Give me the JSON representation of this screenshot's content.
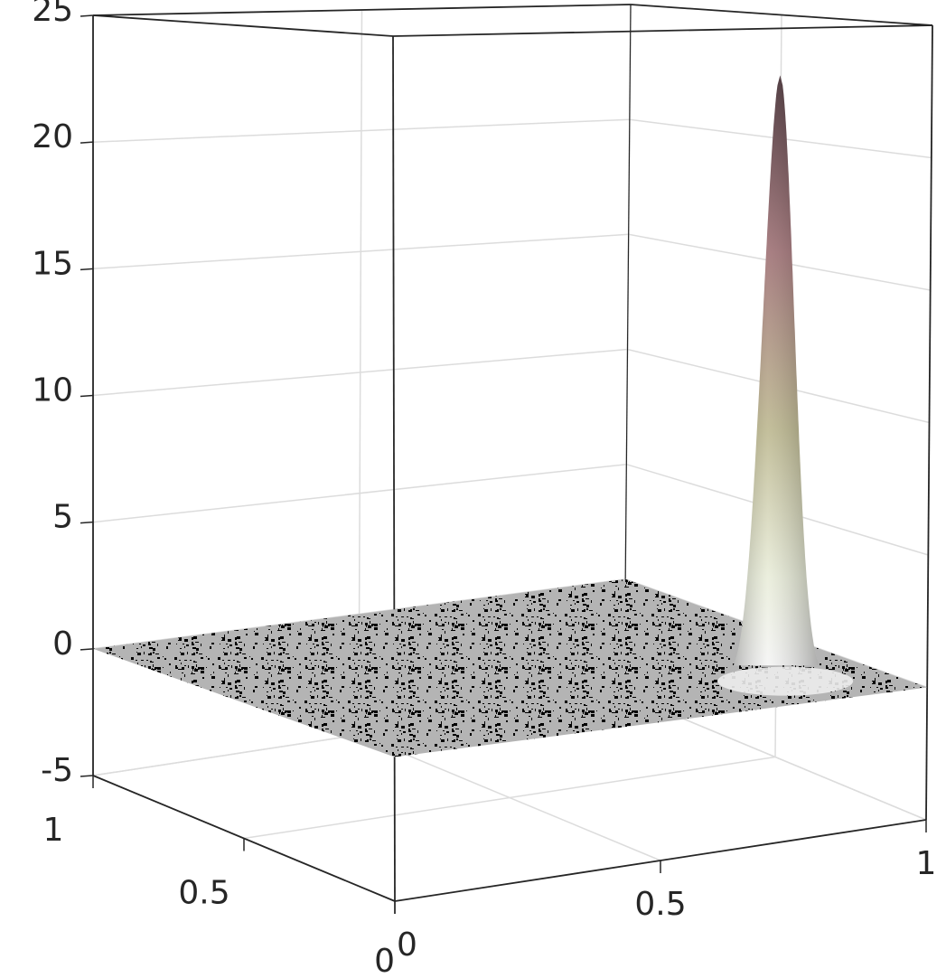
{
  "chart_data": {
    "type": "surface",
    "xlim": [
      0,
      1
    ],
    "xticks": [
      0,
      0.5,
      1
    ],
    "ylim": [
      0,
      1
    ],
    "yticks": [
      0,
      0.5,
      1
    ],
    "zlim": [
      -5,
      25
    ],
    "zticks": [
      -5,
      0,
      5,
      10,
      15,
      20,
      25
    ],
    "peak": {
      "x": 0.83,
      "y": 0.2,
      "z": 23
    },
    "grid": true
  }
}
